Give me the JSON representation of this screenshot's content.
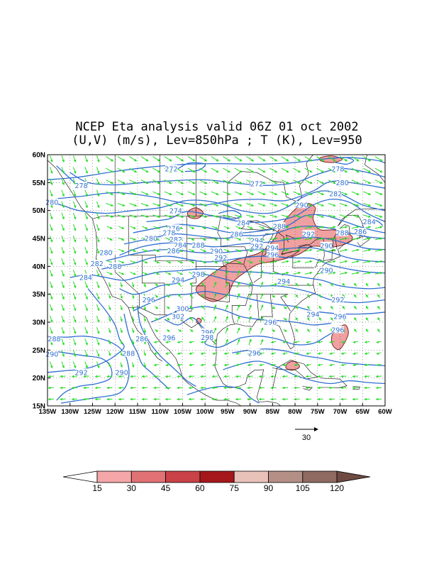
{
  "title": {
    "line1": "NCEP Eta analysis valid 06Z 01 oct 2002",
    "line2": "(U,V) (m/s), Lev=850hPa ; T (K), Lev=950"
  },
  "map": {
    "lat_labels": [
      "60N",
      "55N",
      "50N",
      "45N",
      "40N",
      "35N",
      "30N",
      "25N",
      "20N",
      "15N"
    ],
    "lon_labels": [
      "135W",
      "130W",
      "125W",
      "120W",
      "115W",
      "110W",
      "105W",
      "100W",
      "95W",
      "90W",
      "85W",
      "80W",
      "75W",
      "70W",
      "65W",
      "60W"
    ],
    "lon_range": [
      -135,
      -60
    ],
    "lat_range": [
      15,
      60
    ],
    "colors": {
      "isotherm": "#2f6fd0",
      "wind_vector": "#22dd22",
      "coast": "#000000",
      "shade": "#f0a0a0"
    },
    "isotherm_labels": [
      {
        "text": "272",
        "lon": -107.5,
        "lat": 57.5
      },
      {
        "text": "278",
        "lon": -127.5,
        "lat": 54.5
      },
      {
        "text": "272",
        "lon": -88.5,
        "lat": 54.8
      },
      {
        "text": "278",
        "lon": -70.5,
        "lat": 57.5
      },
      {
        "text": "280",
        "lon": -134,
        "lat": 51.5
      },
      {
        "text": "274",
        "lon": -106.5,
        "lat": 50.0
      },
      {
        "text": "282",
        "lon": -71,
        "lat": 53.0
      },
      {
        "text": "280",
        "lon": -69.5,
        "lat": 55.0
      },
      {
        "text": "276",
        "lon": -107,
        "lat": 46.8
      },
      {
        "text": "278",
        "lon": -108,
        "lat": 46.0
      },
      {
        "text": "280",
        "lon": -112,
        "lat": 45.0
      },
      {
        "text": "282",
        "lon": -106.5,
        "lat": 44.8
      },
      {
        "text": "284",
        "lon": -105.5,
        "lat": 43.8
      },
      {
        "text": "286",
        "lon": -107,
        "lat": 42.8
      },
      {
        "text": "288",
        "lon": -101.5,
        "lat": 43.8
      },
      {
        "text": "284",
        "lon": -91.5,
        "lat": 47.8
      },
      {
        "text": "286",
        "lon": -93,
        "lat": 45.8
      },
      {
        "text": "288",
        "lon": -83.5,
        "lat": 47.2
      },
      {
        "text": "290",
        "lon": -78.5,
        "lat": 51.0
      },
      {
        "text": "292",
        "lon": -77,
        "lat": 45.8
      },
      {
        "text": "294",
        "lon": -88.5,
        "lat": 44.6
      },
      {
        "text": "292",
        "lon": -88.5,
        "lat": 43.6
      },
      {
        "text": "294",
        "lon": -85,
        "lat": 43.3
      },
      {
        "text": "296",
        "lon": -85,
        "lat": 42.1
      },
      {
        "text": "290",
        "lon": -97.5,
        "lat": 42.7
      },
      {
        "text": "292",
        "lon": -96.5,
        "lat": 41.6
      },
      {
        "text": "288",
        "lon": -69.5,
        "lat": 46.0
      },
      {
        "text": "290",
        "lon": -73,
        "lat": 43.7
      },
      {
        "text": "286",
        "lon": -65.5,
        "lat": 46.2
      },
      {
        "text": "284",
        "lon": -63.5,
        "lat": 48.0
      },
      {
        "text": "290",
        "lon": -73,
        "lat": 39.3
      },
      {
        "text": "280",
        "lon": -122,
        "lat": 42.5
      },
      {
        "text": "282",
        "lon": -124,
        "lat": 40.5
      },
      {
        "text": "288",
        "lon": -120,
        "lat": 40.0
      },
      {
        "text": "284",
        "lon": -126.5,
        "lat": 38.0
      },
      {
        "text": "298",
        "lon": -101.5,
        "lat": 38.6
      },
      {
        "text": "294",
        "lon": -106,
        "lat": 37.6
      },
      {
        "text": "294",
        "lon": -82.5,
        "lat": 37.3
      },
      {
        "text": "296",
        "lon": -112.5,
        "lat": 34.0
      },
      {
        "text": "300",
        "lon": -105,
        "lat": 32.4
      },
      {
        "text": "302",
        "lon": -106,
        "lat": 31.0
      },
      {
        "text": "292",
        "lon": -70.5,
        "lat": 34.0
      },
      {
        "text": "294",
        "lon": -76,
        "lat": 31.4
      },
      {
        "text": "296",
        "lon": -85.5,
        "lat": 30.0
      },
      {
        "text": "296",
        "lon": -99.5,
        "lat": 28.2
      },
      {
        "text": "298",
        "lon": -99.5,
        "lat": 27.3
      },
      {
        "text": "296",
        "lon": -108,
        "lat": 27.2
      },
      {
        "text": "286",
        "lon": -114,
        "lat": 27.0
      },
      {
        "text": "296",
        "lon": -70.5,
        "lat": 28.6
      },
      {
        "text": "288",
        "lon": -133.5,
        "lat": 27.0
      },
      {
        "text": "290",
        "lon": -134,
        "lat": 24.3
      },
      {
        "text": "288",
        "lon": -117,
        "lat": 24.4
      },
      {
        "text": "296",
        "lon": -89,
        "lat": 24.5
      },
      {
        "text": "292",
        "lon": -127.5,
        "lat": 21.0
      },
      {
        "text": "290",
        "lon": -118.5,
        "lat": 21.0
      },
      {
        "text": "296",
        "lon": -70,
        "lat": 31.0
      }
    ]
  },
  "reference_vector": {
    "label": "30"
  },
  "colorbar": {
    "levels": [
      "15",
      "30",
      "45",
      "60",
      "75",
      "90",
      "105",
      "120"
    ],
    "colors": [
      "#ffffff",
      "#f4a6a8",
      "#e07174",
      "#c84247",
      "#a4181c",
      "#e8c1b8",
      "#b48f86",
      "#8e6a60",
      "#6e4a42"
    ]
  }
}
